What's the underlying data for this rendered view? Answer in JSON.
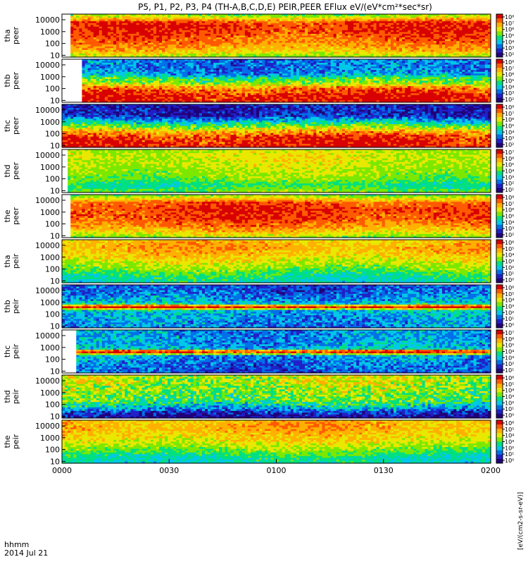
{
  "chart_data": {
    "type": "heatmap",
    "title": "P5, P1, P2, P3, P4 (TH-A,B,C,D,E) PEIR,PEER EFlux eV/(eV*cm²*sec*sr)",
    "x_ticks": [
      "0000",
      "0030",
      "0100",
      "0130",
      "0200"
    ],
    "x_time_range": [
      "00:00",
      "02:00"
    ],
    "x_caption_line1": "hhmm",
    "x_caption_line2": "2014 Jul 21",
    "y_scale": "log",
    "y_range": [
      7,
      30000
    ],
    "y_ticks": [
      {
        "label": "10000",
        "value": 10000
      },
      {
        "label": "1000",
        "value": 1000
      },
      {
        "label": "100",
        "value": 100
      },
      {
        "label": "10",
        "value": 10
      }
    ],
    "colorbar_label": "[eV/(cm2-s-sr-eV)]",
    "colormap": [
      "#20007a",
      "#2020c8",
      "#0070e8",
      "#00c8e8",
      "#00e080",
      "#7ce800",
      "#e8e800",
      "#ffb000",
      "#ff5a00",
      "#d80000"
    ],
    "panels": [
      {
        "probe": "tha",
        "species": "peer",
        "cb_ticks": [
          "10⁸",
          "10⁷",
          "10⁶",
          "10⁵",
          "10⁴",
          "10³",
          "10²"
        ],
        "gap_end": 0.02,
        "profile": [
          [
            7,
            0.55
          ],
          [
            20,
            0.7
          ],
          [
            80,
            0.8
          ],
          [
            300,
            0.85
          ],
          [
            1500,
            0.9
          ],
          [
            6000,
            0.88
          ],
          [
            20000,
            0.6
          ],
          [
            30000,
            0.5
          ]
        ],
        "noise": 0.08
      },
      {
        "probe": "thb",
        "species": "peer",
        "cb_ticks": [
          "10⁸",
          "10⁷",
          "10⁶",
          "10⁵",
          "10⁴",
          "10³",
          "10²"
        ],
        "gap_end": 0.045,
        "profile": [
          [
            7,
            0.95
          ],
          [
            30,
            0.93
          ],
          [
            120,
            0.8
          ],
          [
            300,
            0.55
          ],
          [
            700,
            0.5
          ],
          [
            1500,
            0.3
          ],
          [
            4000,
            0.25
          ],
          [
            30000,
            0.25
          ]
        ],
        "noise": 0.12
      },
      {
        "probe": "thc",
        "species": "peer",
        "cb_ticks": [
          "10⁸",
          "10⁷",
          "10⁶",
          "10⁵",
          "10⁴",
          "10³",
          "10²"
        ],
        "gap_end": 0.0,
        "profile": [
          [
            7,
            0.95
          ],
          [
            40,
            0.92
          ],
          [
            150,
            0.75
          ],
          [
            400,
            0.55
          ],
          [
            1500,
            0.3
          ],
          [
            3000,
            0.15
          ],
          [
            30000,
            0.12
          ]
        ],
        "noise": 0.12
      },
      {
        "probe": "thd",
        "species": "peer",
        "cb_ticks": [
          "10⁷",
          "10⁶",
          "10⁵",
          "10⁴",
          "10³",
          "10²",
          "10¹"
        ],
        "gap_end": 0.01,
        "profile": [
          [
            7,
            0.55
          ],
          [
            30,
            0.45
          ],
          [
            100,
            0.55
          ],
          [
            500,
            0.6
          ],
          [
            2000,
            0.62
          ],
          [
            8000,
            0.65
          ],
          [
            30000,
            0.6
          ]
        ],
        "noise": 0.07
      },
      {
        "probe": "the",
        "species": "peer",
        "cb_ticks": [
          "10⁸",
          "10⁷",
          "10⁶",
          "10⁵",
          "10⁴",
          "10³",
          "10²"
        ],
        "gap_end": 0.015,
        "profile": [
          [
            7,
            0.55
          ],
          [
            20,
            0.7
          ],
          [
            80,
            0.82
          ],
          [
            300,
            0.88
          ],
          [
            1500,
            0.9
          ],
          [
            6000,
            0.86
          ],
          [
            20000,
            0.6
          ],
          [
            30000,
            0.5
          ]
        ],
        "noise": 0.08
      },
      {
        "probe": "tha",
        "species": "peir",
        "cb_ticks": [
          "10⁶",
          "10⁵",
          "10⁴",
          "10³",
          "10²",
          "10¹",
          "10⁰"
        ],
        "gap_end": 0.0,
        "profile": [
          [
            7,
            0.4
          ],
          [
            30,
            0.45
          ],
          [
            100,
            0.55
          ],
          [
            500,
            0.65
          ],
          [
            2000,
            0.72
          ],
          [
            8000,
            0.76
          ],
          [
            30000,
            0.7
          ]
        ],
        "noise": 0.08
      },
      {
        "probe": "thb",
        "species": "peir",
        "cb_ticks": [
          "10⁶",
          "10⁵",
          "10⁴",
          "10³",
          "10²",
          "10¹",
          "10⁰"
        ],
        "gap_end": 0.0,
        "profile": [
          [
            7,
            0.25
          ],
          [
            50,
            0.3
          ],
          [
            200,
            0.35
          ],
          [
            380,
            0.95
          ],
          [
            480,
            0.95
          ],
          [
            650,
            0.4
          ],
          [
            1500,
            0.3
          ],
          [
            8000,
            0.22
          ],
          [
            30000,
            0.2
          ]
        ],
        "noise": 0.12
      },
      {
        "probe": "thc",
        "species": "peir",
        "cb_ticks": [
          "10⁷",
          "10⁶",
          "10⁵",
          "10⁴",
          "10³",
          "10²",
          "10¹"
        ],
        "gap_end": 0.03,
        "profile": [
          [
            7,
            0.2
          ],
          [
            50,
            0.25
          ],
          [
            200,
            0.3
          ],
          [
            400,
            0.95
          ],
          [
            500,
            0.95
          ],
          [
            700,
            0.35
          ],
          [
            2000,
            0.3
          ],
          [
            30000,
            0.28
          ]
        ],
        "noise": 0.12
      },
      {
        "probe": "thd",
        "species": "peir",
        "cb_ticks": [
          "10⁶",
          "10⁵",
          "10⁴",
          "10³",
          "10²",
          "10¹",
          "10⁰"
        ],
        "gap_end": 0.0,
        "profile": [
          [
            7,
            0.05
          ],
          [
            20,
            0.15
          ],
          [
            60,
            0.35
          ],
          [
            200,
            0.5
          ],
          [
            1000,
            0.55
          ],
          [
            5000,
            0.6
          ],
          [
            30000,
            0.62
          ]
        ],
        "noise": 0.14
      },
      {
        "probe": "the",
        "species": "peir",
        "cb_ticks": [
          "10⁶",
          "10⁵",
          "10⁴",
          "10³",
          "10²",
          "10¹",
          "10⁰"
        ],
        "gap_end": 0.0,
        "profile": [
          [
            7,
            0.4
          ],
          [
            30,
            0.45
          ],
          [
            100,
            0.55
          ],
          [
            500,
            0.66
          ],
          [
            2000,
            0.72
          ],
          [
            8000,
            0.76
          ],
          [
            30000,
            0.72
          ]
        ],
        "noise": 0.08
      }
    ]
  }
}
